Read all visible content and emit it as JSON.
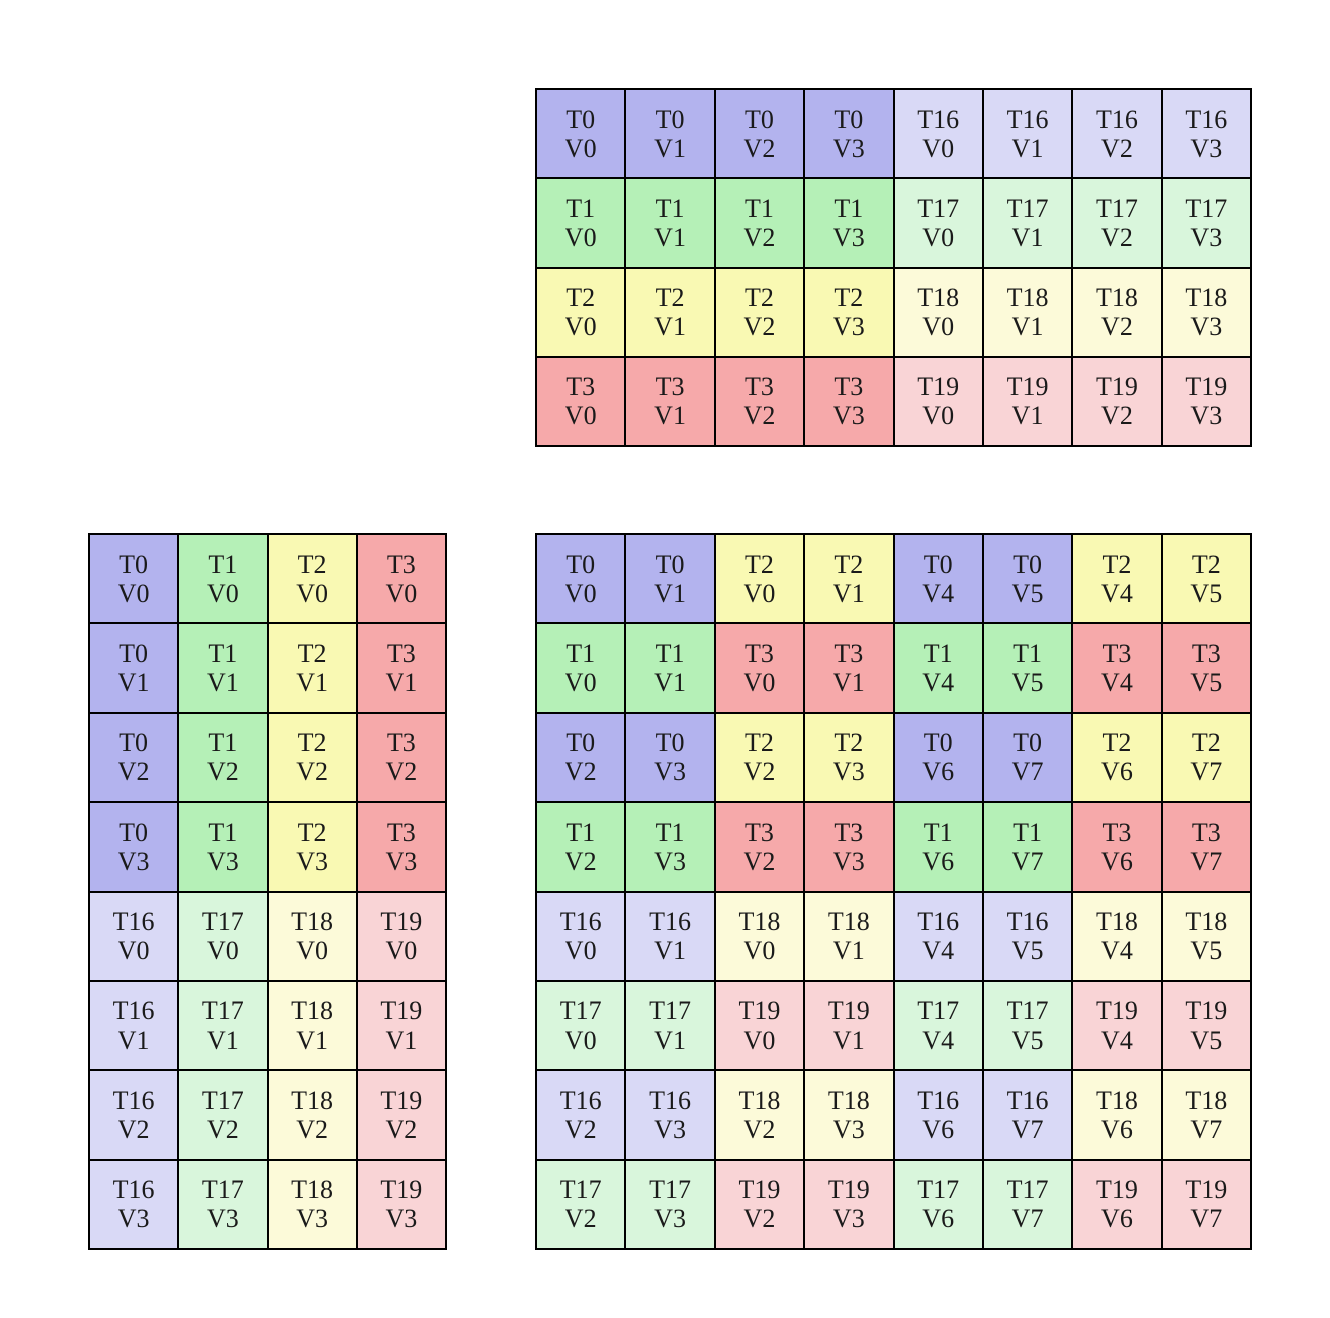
{
  "figure": {
    "description": "Three thread/value mapping grids (register fragment layout diagram)",
    "background": "#ffffff"
  },
  "palette": {
    "blue": "#b3b3ee",
    "green": "#b5f0b7",
    "yellow": "#f9f9b3",
    "red": "#f6a9aa",
    "blue_light": "#d9d9f6",
    "green_light": "#d9f6dc",
    "yellow_light": "#fcfad9",
    "red_light": "#f9d4d6",
    "grid_line": "#000000",
    "text": "#1a1a1a"
  },
  "grids": [
    {
      "name": "grid-top",
      "rows": 4,
      "cols": 8,
      "cells": [
        [
          [
            "T0",
            "V0",
            "blue"
          ],
          [
            "T0",
            "V1",
            "blue"
          ],
          [
            "T0",
            "V2",
            "blue"
          ],
          [
            "T0",
            "V3",
            "blue"
          ],
          [
            "T16",
            "V0",
            "blue_light"
          ],
          [
            "T16",
            "V1",
            "blue_light"
          ],
          [
            "T16",
            "V2",
            "blue_light"
          ],
          [
            "T16",
            "V3",
            "blue_light"
          ]
        ],
        [
          [
            "T1",
            "V0",
            "green"
          ],
          [
            "T1",
            "V1",
            "green"
          ],
          [
            "T1",
            "V2",
            "green"
          ],
          [
            "T1",
            "V3",
            "green"
          ],
          [
            "T17",
            "V0",
            "green_light"
          ],
          [
            "T17",
            "V1",
            "green_light"
          ],
          [
            "T17",
            "V2",
            "green_light"
          ],
          [
            "T17",
            "V3",
            "green_light"
          ]
        ],
        [
          [
            "T2",
            "V0",
            "yellow"
          ],
          [
            "T2",
            "V1",
            "yellow"
          ],
          [
            "T2",
            "V2",
            "yellow"
          ],
          [
            "T2",
            "V3",
            "yellow"
          ],
          [
            "T18",
            "V0",
            "yellow_light"
          ],
          [
            "T18",
            "V1",
            "yellow_light"
          ],
          [
            "T18",
            "V2",
            "yellow_light"
          ],
          [
            "T18",
            "V3",
            "yellow_light"
          ]
        ],
        [
          [
            "T3",
            "V0",
            "red"
          ],
          [
            "T3",
            "V1",
            "red"
          ],
          [
            "T3",
            "V2",
            "red"
          ],
          [
            "T3",
            "V3",
            "red"
          ],
          [
            "T19",
            "V0",
            "red_light"
          ],
          [
            "T19",
            "V1",
            "red_light"
          ],
          [
            "T19",
            "V2",
            "red_light"
          ],
          [
            "T19",
            "V3",
            "red_light"
          ]
        ]
      ]
    },
    {
      "name": "grid-bottom-left",
      "rows": 8,
      "cols": 4,
      "cells": [
        [
          [
            "T0",
            "V0",
            "blue"
          ],
          [
            "T1",
            "V0",
            "green"
          ],
          [
            "T2",
            "V0",
            "yellow"
          ],
          [
            "T3",
            "V0",
            "red"
          ]
        ],
        [
          [
            "T0",
            "V1",
            "blue"
          ],
          [
            "T1",
            "V1",
            "green"
          ],
          [
            "T2",
            "V1",
            "yellow"
          ],
          [
            "T3",
            "V1",
            "red"
          ]
        ],
        [
          [
            "T0",
            "V2",
            "blue"
          ],
          [
            "T1",
            "V2",
            "green"
          ],
          [
            "T2",
            "V2",
            "yellow"
          ],
          [
            "T3",
            "V2",
            "red"
          ]
        ],
        [
          [
            "T0",
            "V3",
            "blue"
          ],
          [
            "T1",
            "V3",
            "green"
          ],
          [
            "T2",
            "V3",
            "yellow"
          ],
          [
            "T3",
            "V3",
            "red"
          ]
        ],
        [
          [
            "T16",
            "V0",
            "blue_light"
          ],
          [
            "T17",
            "V0",
            "green_light"
          ],
          [
            "T18",
            "V0",
            "yellow_light"
          ],
          [
            "T19",
            "V0",
            "red_light"
          ]
        ],
        [
          [
            "T16",
            "V1",
            "blue_light"
          ],
          [
            "T17",
            "V1",
            "green_light"
          ],
          [
            "T18",
            "V1",
            "yellow_light"
          ],
          [
            "T19",
            "V1",
            "red_light"
          ]
        ],
        [
          [
            "T16",
            "V2",
            "blue_light"
          ],
          [
            "T17",
            "V2",
            "green_light"
          ],
          [
            "T18",
            "V2",
            "yellow_light"
          ],
          [
            "T19",
            "V2",
            "red_light"
          ]
        ],
        [
          [
            "T16",
            "V3",
            "blue_light"
          ],
          [
            "T17",
            "V3",
            "green_light"
          ],
          [
            "T18",
            "V3",
            "yellow_light"
          ],
          [
            "T19",
            "V3",
            "red_light"
          ]
        ]
      ]
    },
    {
      "name": "grid-bottom-right",
      "rows": 8,
      "cols": 8,
      "cells": [
        [
          [
            "T0",
            "V0",
            "blue"
          ],
          [
            "T0",
            "V1",
            "blue"
          ],
          [
            "T2",
            "V0",
            "yellow"
          ],
          [
            "T2",
            "V1",
            "yellow"
          ],
          [
            "T0",
            "V4",
            "blue"
          ],
          [
            "T0",
            "V5",
            "blue"
          ],
          [
            "T2",
            "V4",
            "yellow"
          ],
          [
            "T2",
            "V5",
            "yellow"
          ]
        ],
        [
          [
            "T1",
            "V0",
            "green"
          ],
          [
            "T1",
            "V1",
            "green"
          ],
          [
            "T3",
            "V0",
            "red"
          ],
          [
            "T3",
            "V1",
            "red"
          ],
          [
            "T1",
            "V4",
            "green"
          ],
          [
            "T1",
            "V5",
            "green"
          ],
          [
            "T3",
            "V4",
            "red"
          ],
          [
            "T3",
            "V5",
            "red"
          ]
        ],
        [
          [
            "T0",
            "V2",
            "blue"
          ],
          [
            "T0",
            "V3",
            "blue"
          ],
          [
            "T2",
            "V2",
            "yellow"
          ],
          [
            "T2",
            "V3",
            "yellow"
          ],
          [
            "T0",
            "V6",
            "blue"
          ],
          [
            "T0",
            "V7",
            "blue"
          ],
          [
            "T2",
            "V6",
            "yellow"
          ],
          [
            "T2",
            "V7",
            "yellow"
          ]
        ],
        [
          [
            "T1",
            "V2",
            "green"
          ],
          [
            "T1",
            "V3",
            "green"
          ],
          [
            "T3",
            "V2",
            "red"
          ],
          [
            "T3",
            "V3",
            "red"
          ],
          [
            "T1",
            "V6",
            "green"
          ],
          [
            "T1",
            "V7",
            "green"
          ],
          [
            "T3",
            "V6",
            "red"
          ],
          [
            "T3",
            "V7",
            "red"
          ]
        ],
        [
          [
            "T16",
            "V0",
            "blue_light"
          ],
          [
            "T16",
            "V1",
            "blue_light"
          ],
          [
            "T18",
            "V0",
            "yellow_light"
          ],
          [
            "T18",
            "V1",
            "yellow_light"
          ],
          [
            "T16",
            "V4",
            "blue_light"
          ],
          [
            "T16",
            "V5",
            "blue_light"
          ],
          [
            "T18",
            "V4",
            "yellow_light"
          ],
          [
            "T18",
            "V5",
            "yellow_light"
          ]
        ],
        [
          [
            "T17",
            "V0",
            "green_light"
          ],
          [
            "T17",
            "V1",
            "green_light"
          ],
          [
            "T19",
            "V0",
            "red_light"
          ],
          [
            "T19",
            "V1",
            "red_light"
          ],
          [
            "T17",
            "V4",
            "green_light"
          ],
          [
            "T17",
            "V5",
            "green_light"
          ],
          [
            "T19",
            "V4",
            "red_light"
          ],
          [
            "T19",
            "V5",
            "red_light"
          ]
        ],
        [
          [
            "T16",
            "V2",
            "blue_light"
          ],
          [
            "T16",
            "V3",
            "blue_light"
          ],
          [
            "T18",
            "V2",
            "yellow_light"
          ],
          [
            "T18",
            "V3",
            "yellow_light"
          ],
          [
            "T16",
            "V6",
            "blue_light"
          ],
          [
            "T16",
            "V7",
            "blue_light"
          ],
          [
            "T18",
            "V6",
            "yellow_light"
          ],
          [
            "T18",
            "V7",
            "yellow_light"
          ]
        ],
        [
          [
            "T17",
            "V2",
            "green_light"
          ],
          [
            "T17",
            "V3",
            "green_light"
          ],
          [
            "T19",
            "V2",
            "red_light"
          ],
          [
            "T19",
            "V3",
            "red_light"
          ],
          [
            "T17",
            "V6",
            "green_light"
          ],
          [
            "T17",
            "V7",
            "green_light"
          ],
          [
            "T19",
            "V6",
            "red_light"
          ],
          [
            "T19",
            "V7",
            "red_light"
          ]
        ]
      ]
    }
  ]
}
